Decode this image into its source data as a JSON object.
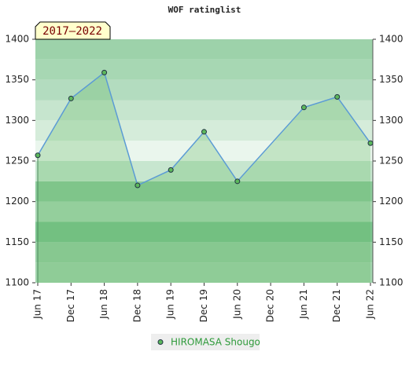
{
  "chart_data": {
    "type": "line",
    "title": "WOF ratinglist",
    "badge": "2017–2022",
    "categories": [
      "Jun 17",
      "Dec 17",
      "Jun 18",
      "Dec 18",
      "Jun 19",
      "Dec 19",
      "Jun 20",
      "Dec 20",
      "Jun 21",
      "Dec 21",
      "Jun 22"
    ],
    "series": [
      {
        "name": "HIROMASA Shougo",
        "color": "#5b9bd5",
        "marker_color": "#5cb85c",
        "x": [
          "Jun 17",
          "Dec 17",
          "Jun 18",
          "Dec 18",
          "Jun 19",
          "Dec 19",
          "Jun 20",
          "Jun 21",
          "Dec 21",
          "Jun 22"
        ],
        "values": [
          1257,
          1327,
          1359,
          1220,
          1239,
          1286,
          1225,
          1316,
          1329,
          1272
        ]
      }
    ],
    "ylim": [
      1100,
      1400
    ],
    "yticks": [
      1100,
      1150,
      1200,
      1250,
      1300,
      1350,
      1400
    ],
    "y2lim": [
      1100,
      1400
    ],
    "y2ticks": [
      1100,
      1150,
      1200,
      1250,
      1300,
      1350,
      1400
    ]
  }
}
